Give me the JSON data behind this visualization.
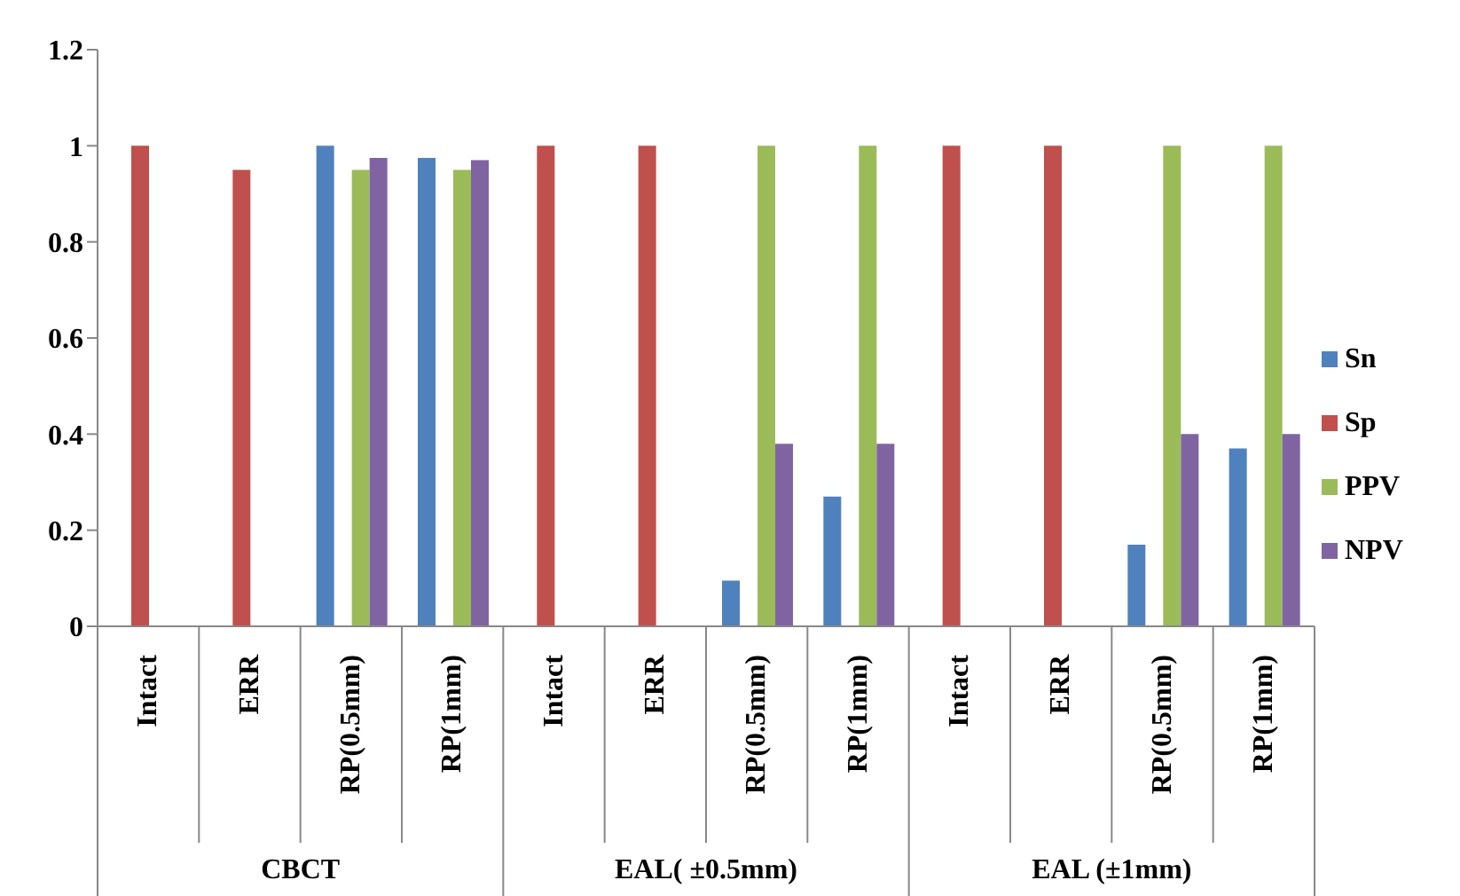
{
  "chart_data": {
    "type": "bar",
    "categories": [
      "Intact",
      "ERR",
      "RP(0.5mm)",
      "RP(1mm)",
      "Intact",
      "ERR",
      "RP(0.5mm)",
      "RP(1mm)",
      "Intact",
      "ERR",
      "RP(0.5mm)",
      "RP(1mm)"
    ],
    "series": [
      {
        "name": "Sn",
        "color": "#4f81bd",
        "values": [
          0,
          0,
          1,
          0.975,
          0,
          0,
          0.095,
          0.27,
          0,
          0,
          0.17,
          0.37
        ]
      },
      {
        "name": "Sp",
        "color": "#c0504d",
        "values": [
          1,
          0.95,
          0,
          0,
          1,
          1,
          0,
          0,
          1,
          1,
          0,
          0
        ]
      },
      {
        "name": "PPV",
        "color": "#9bbb59",
        "values": [
          0,
          0,
          0.95,
          0.95,
          0,
          0,
          1,
          1,
          0,
          0,
          1,
          1
        ]
      },
      {
        "name": "NPV",
        "color": "#8064a2",
        "values": [
          0,
          0,
          0.975,
          0.97,
          0,
          0,
          0.38,
          0.38,
          0,
          0,
          0.4,
          0.4
        ]
      }
    ],
    "annotations": [
      "CBCT",
      "EAL( ±0.5mm)",
      "EAL (±1mm)"
    ],
    "ylim": [
      0,
      1.2
    ],
    "yticks": [
      0,
      0.2,
      0.4,
      0.6,
      0.8,
      1,
      1.2
    ],
    "legend": "right",
    "grid": false
  }
}
